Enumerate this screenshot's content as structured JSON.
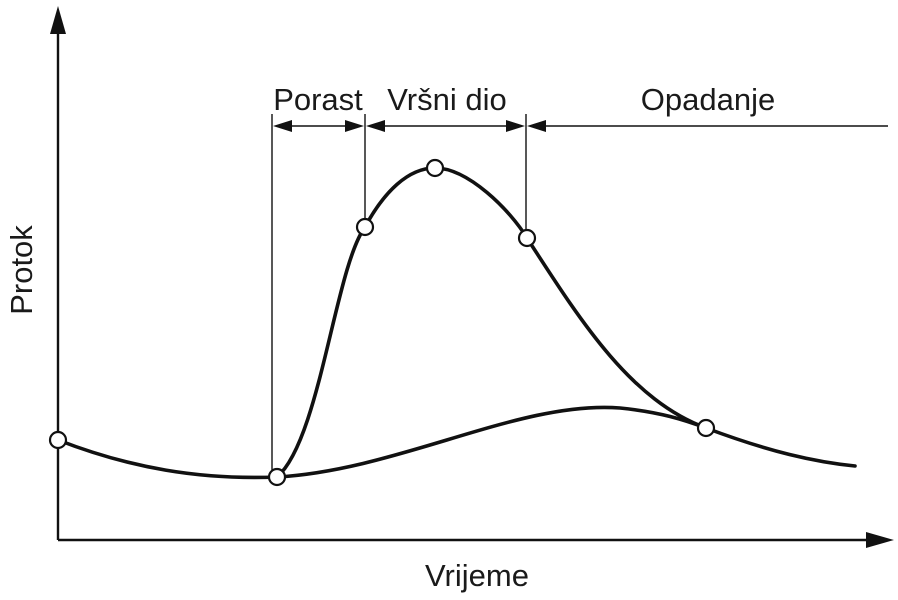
{
  "diagram": {
    "y_axis_label": "Protok",
    "x_axis_label": "Vrijeme",
    "phases": [
      {
        "key": "rise",
        "label": "Porast"
      },
      {
        "key": "peak",
        "label": "Vršni dio"
      },
      {
        "key": "recession",
        "label": "Opadanje"
      }
    ],
    "colors": {
      "line": "#111111",
      "background": "#ffffff",
      "marker_fill": "#ffffff"
    }
  }
}
